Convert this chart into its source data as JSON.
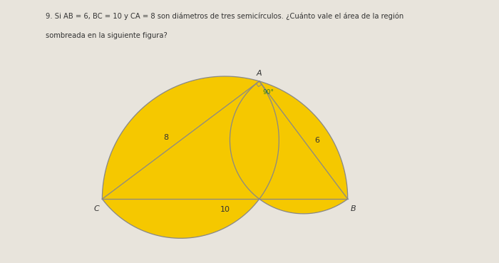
{
  "AB": 6,
  "BC": 10,
  "CA": 8,
  "fill_color": "#F5C800",
  "edge_color": "#888888",
  "bg_color": "#E8E4DC",
  "text_color_black": "#333333",
  "text_color_green": "#2A7A2A",
  "label_AB": "6",
  "label_BC": "10",
  "label_CA": "8",
  "label_angle": "90°",
  "label_A": "A",
  "label_B": "B",
  "label_C": "C",
  "title_line1": "9. Si AB = 6, BC = 10 y CA = 8 son diámetros de tres semicírculos. ¿Cuánto vale el área de la región",
  "title_line2": "sombreada en la siguiente figura?"
}
